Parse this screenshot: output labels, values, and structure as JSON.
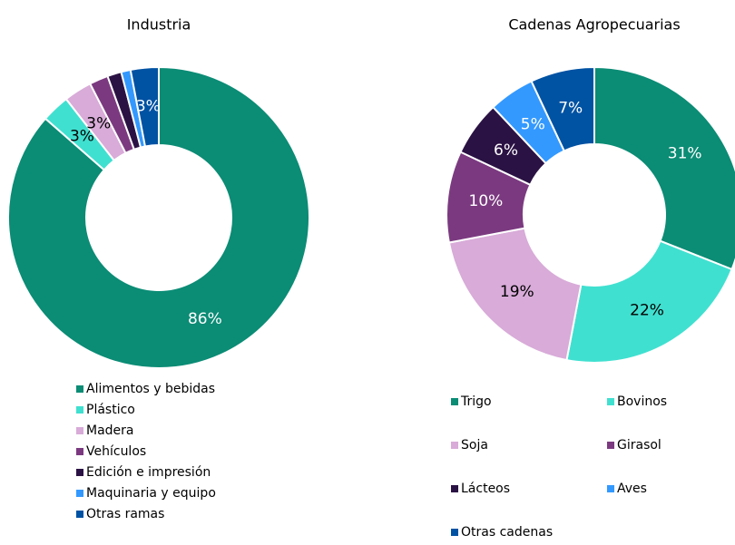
{
  "chart_data": [
    {
      "type": "donut",
      "title": "Industria",
      "categories": [
        "Alimentos y bebidas",
        "Plástico",
        "Madera",
        "Vehículos",
        "Edición e impresión",
        "Maquinaria y equipo",
        "Otras ramas"
      ],
      "values": [
        86,
        3,
        3,
        2,
        1.5,
        1,
        3
      ],
      "value_labels": [
        "86%",
        "3%",
        "3%",
        null,
        null,
        null,
        "3%"
      ],
      "colors": [
        "#0b8c75",
        "#40e0d0",
        "#d8abd8",
        "#7b3a80",
        "#2b1244",
        "#3399ff",
        "#0052a3"
      ],
      "legend": "bottom"
    },
    {
      "type": "donut",
      "title": "Cadenas Agropecuarias",
      "categories": [
        "Trigo",
        "Bovinos",
        "Soja",
        "Girasol",
        "Lácteos",
        "Aves",
        "Otras cadenas"
      ],
      "values": [
        31,
        22,
        19,
        10,
        6,
        5,
        7
      ],
      "value_labels": [
        "31%",
        "22%",
        "19%",
        "10%",
        "6%",
        "5%",
        "7%"
      ],
      "colors": [
        "#0b8c75",
        "#40e0d0",
        "#d8abd8",
        "#7b3a80",
        "#2b1244",
        "#3399ff",
        "#0052a3"
      ],
      "legend": "bottom"
    }
  ]
}
